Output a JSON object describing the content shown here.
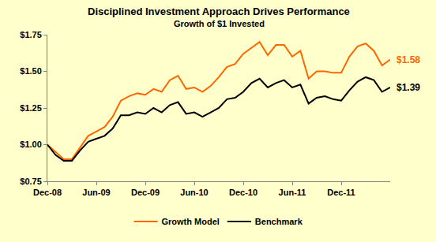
{
  "chart_data": {
    "type": "line",
    "title": "Disciplined Investment Approach Drives Performance",
    "subtitle": "Growth of $1 Invested",
    "categories": [
      "Dec-08",
      null,
      null,
      null,
      null,
      null,
      "Jun-09",
      null,
      null,
      null,
      null,
      null,
      "Dec-09",
      null,
      null,
      null,
      null,
      null,
      "Jun-10",
      null,
      null,
      null,
      null,
      null,
      "Dec-10",
      null,
      null,
      null,
      null,
      null,
      "Jun-11",
      null,
      null,
      null,
      null,
      null,
      "Dec-11",
      null,
      null,
      null,
      null,
      null,
      null
    ],
    "series": [
      {
        "name": "Growth Model",
        "color": "#FF6600",
        "end_label": "$1.58",
        "values": [
          1.0,
          0.95,
          0.9,
          0.9,
          0.98,
          1.06,
          1.09,
          1.12,
          1.19,
          1.3,
          1.33,
          1.35,
          1.34,
          1.38,
          1.36,
          1.44,
          1.47,
          1.38,
          1.39,
          1.36,
          1.4,
          1.46,
          1.53,
          1.55,
          1.62,
          1.66,
          1.7,
          1.61,
          1.68,
          1.68,
          1.6,
          1.64,
          1.45,
          1.5,
          1.5,
          1.49,
          1.49,
          1.6,
          1.67,
          1.69,
          1.64,
          1.54,
          1.58
        ]
      },
      {
        "name": "Benchmark",
        "color": "#000000",
        "end_label": "$1.39",
        "values": [
          1.0,
          0.93,
          0.89,
          0.89,
          0.96,
          1.02,
          1.04,
          1.06,
          1.11,
          1.2,
          1.2,
          1.22,
          1.21,
          1.25,
          1.22,
          1.27,
          1.29,
          1.21,
          1.22,
          1.19,
          1.22,
          1.25,
          1.31,
          1.32,
          1.36,
          1.42,
          1.45,
          1.39,
          1.42,
          1.44,
          1.39,
          1.41,
          1.28,
          1.32,
          1.33,
          1.31,
          1.3,
          1.37,
          1.43,
          1.46,
          1.44,
          1.36,
          1.39
        ]
      }
    ],
    "ylim": [
      0.75,
      1.75
    ],
    "yticks": [
      {
        "value": 0.75,
        "label": "$0.75"
      },
      {
        "value": 1.0,
        "label": "$1.00"
      },
      {
        "value": 1.25,
        "label": "$1.25"
      },
      {
        "value": 1.5,
        "label": "$1.50"
      },
      {
        "value": 1.75,
        "label": "$1.75"
      }
    ],
    "grid": false,
    "legend": "bottom"
  }
}
